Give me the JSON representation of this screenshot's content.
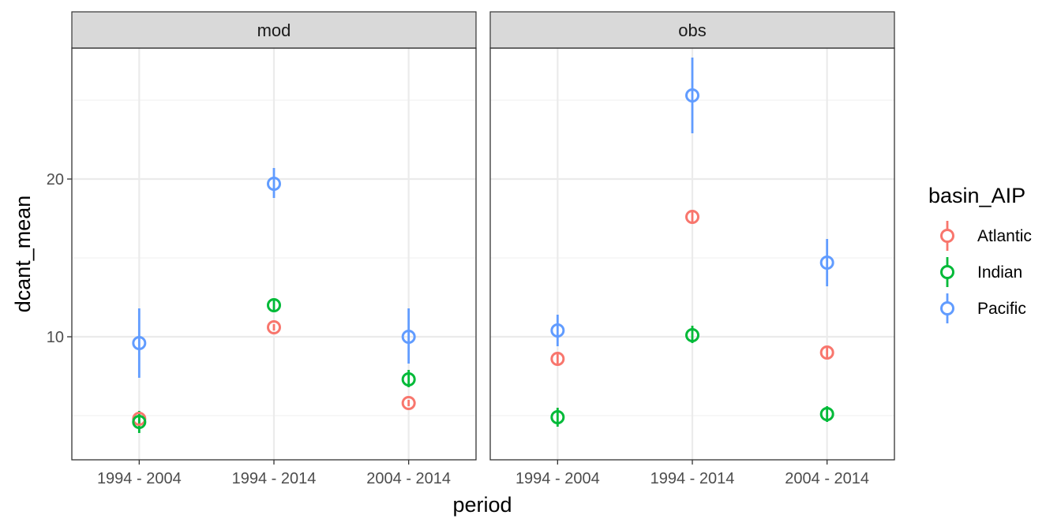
{
  "chart_data": {
    "type": "scatter",
    "title": "",
    "xlabel": "period",
    "ylabel": "dcant_mean",
    "ylim": [
      2.2,
      28.3
    ],
    "y_ticks": [
      10,
      20
    ],
    "y_minor_ticks": [
      5,
      15,
      25
    ],
    "grid": true,
    "categories": [
      "1994 - 2004",
      "1994 - 2014",
      "2004 - 2014"
    ],
    "legend": {
      "title": "basin_AIP",
      "placement": "right",
      "entries": [
        {
          "name": "Atlantic",
          "color": "#F8766D"
        },
        {
          "name": "Indian",
          "color": "#00BA38"
        },
        {
          "name": "Pacific",
          "color": "#619CFF"
        }
      ]
    },
    "facets": [
      {
        "label": "mod",
        "series": [
          {
            "name": "Atlantic",
            "color": "#F8766D",
            "values": [
              4.8,
              10.6,
              5.8
            ],
            "lower": [
              4.5,
              10.4,
              5.6
            ],
            "upper": [
              5.1,
              10.8,
              6.0
            ]
          },
          {
            "name": "Indian",
            "color": "#00BA38",
            "values": [
              4.6,
              12.0,
              7.3
            ],
            "lower": [
              3.9,
              11.7,
              6.8
            ],
            "upper": [
              5.3,
              12.4,
              7.9
            ]
          },
          {
            "name": "Pacific",
            "color": "#619CFF",
            "values": [
              9.6,
              19.7,
              10.0
            ],
            "lower": [
              7.4,
              18.8,
              8.3
            ],
            "upper": [
              11.8,
              20.7,
              11.8
            ]
          }
        ]
      },
      {
        "label": "obs",
        "series": [
          {
            "name": "Atlantic",
            "color": "#F8766D",
            "values": [
              8.6,
              17.6,
              9.0
            ],
            "lower": [
              8.3,
              17.3,
              8.7
            ],
            "upper": [
              8.9,
              17.9,
              9.3
            ]
          },
          {
            "name": "Indian",
            "color": "#00BA38",
            "values": [
              4.9,
              10.1,
              5.1
            ],
            "lower": [
              4.3,
              9.6,
              4.6
            ],
            "upper": [
              5.5,
              10.7,
              5.6
            ]
          },
          {
            "name": "Pacific",
            "color": "#619CFF",
            "values": [
              10.4,
              25.3,
              14.7
            ],
            "lower": [
              9.4,
              22.9,
              13.2
            ],
            "upper": [
              11.4,
              27.7,
              16.2
            ]
          }
        ]
      }
    ]
  }
}
